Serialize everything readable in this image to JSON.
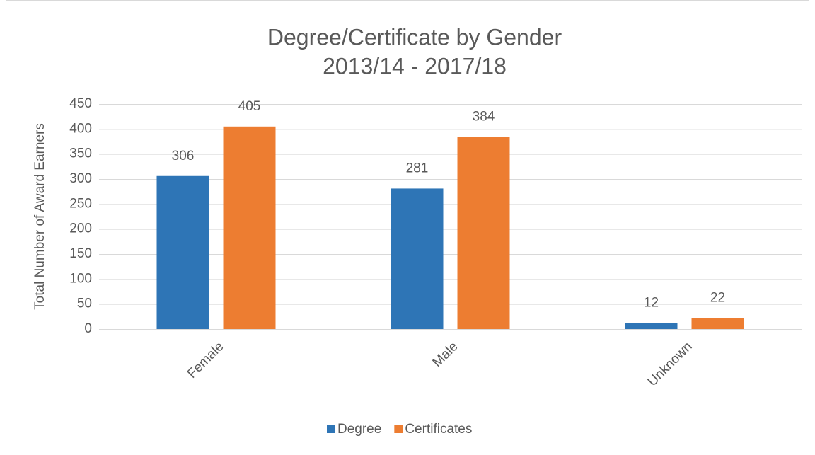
{
  "chart_data": {
    "type": "bar",
    "title": "Degree/Certificate by Gender",
    "subtitle": "2013/14 - 2017/18",
    "y_label": "Total Number of Award Earners",
    "categories": [
      "Female",
      "Male",
      "Unknown"
    ],
    "series": [
      {
        "name": "Degree",
        "color": "#2e75b6",
        "values": [
          306,
          281,
          12
        ]
      },
      {
        "name": "Certificates",
        "color": "#ed7d31",
        "values": [
          405,
          384,
          22
        ]
      }
    ],
    "ylim": [
      0,
      450
    ],
    "yticks": [
      0,
      50,
      100,
      150,
      200,
      250,
      300,
      350,
      400,
      450
    ],
    "grid": true,
    "legend": "bottom"
  }
}
